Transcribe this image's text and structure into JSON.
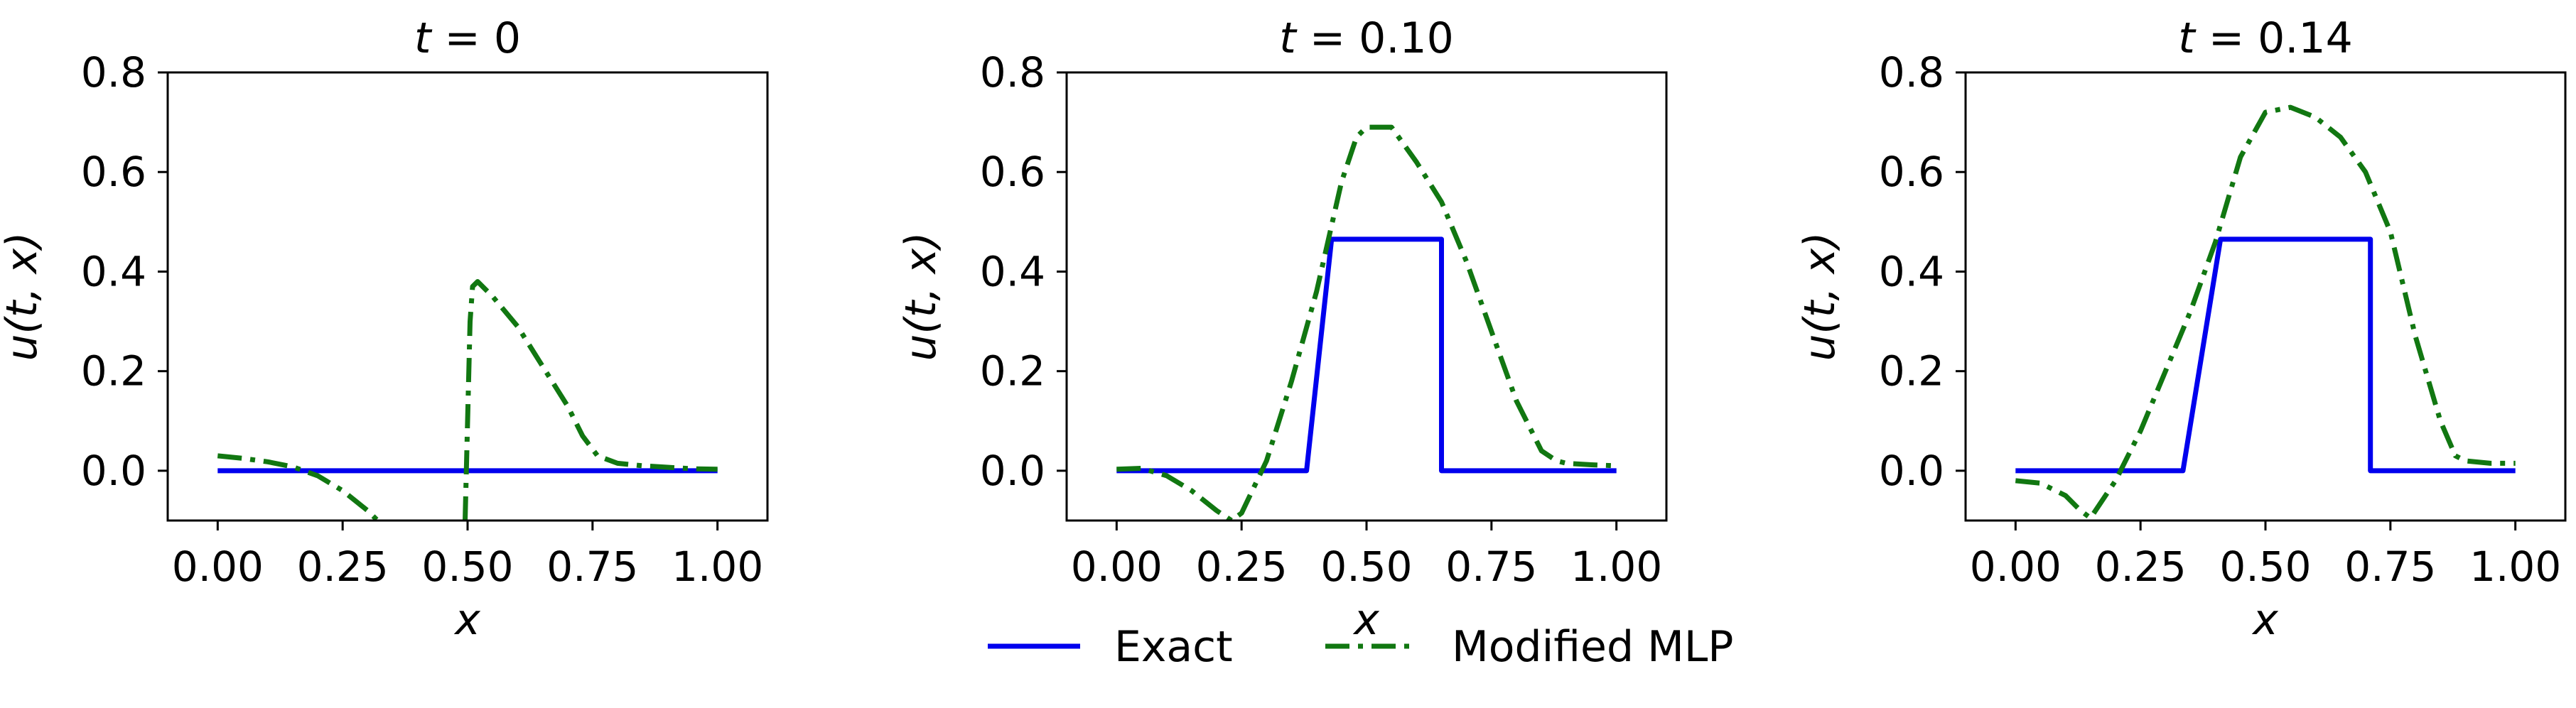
{
  "colors": {
    "exact": "#0000ee",
    "modified_mlp": "#117711",
    "axes": "#000000"
  },
  "legend": {
    "exact_label": "Exact",
    "modified_label": "Modified MLP",
    "placement": "bottom-center"
  },
  "chart_data": [
    {
      "type": "line",
      "title": "t = 0",
      "xlabel": "x",
      "ylabel": "u(t, x)",
      "xlim": [
        -0.1,
        1.1
      ],
      "ylim": [
        -0.1,
        0.8
      ],
      "xticks": [
        0.0,
        0.25,
        0.5,
        0.75,
        1.0
      ],
      "xtick_labels": [
        "0.00",
        "0.25",
        "0.50",
        "0.75",
        "1.00"
      ],
      "yticks": [
        0.0,
        0.2,
        0.4,
        0.6,
        0.8
      ],
      "ytick_labels": [
        "0.0",
        "0.2",
        "0.4",
        "0.6",
        "0.8"
      ],
      "series": [
        {
          "name": "Exact",
          "x": [
            0.0,
            1.0
          ],
          "y": [
            0.0,
            0.0
          ]
        },
        {
          "name": "Modified MLP",
          "x": [
            0.0,
            0.05,
            0.1,
            0.15,
            0.2,
            0.25,
            0.3,
            0.32,
            null,
            0.495,
            0.5,
            0.505,
            0.51,
            0.52,
            0.55,
            0.6,
            0.65,
            0.7,
            0.73,
            0.76,
            0.8,
            0.85,
            0.9,
            0.95,
            1.0
          ],
          "y": [
            0.03,
            0.025,
            0.018,
            0.008,
            -0.01,
            -0.04,
            -0.08,
            -0.1,
            null,
            -0.1,
            0.1,
            0.3,
            0.37,
            0.38,
            0.35,
            0.29,
            0.21,
            0.13,
            0.07,
            0.03,
            0.015,
            0.01,
            0.007,
            0.004,
            0.003
          ]
        }
      ]
    },
    {
      "type": "line",
      "title": "t = 0.10",
      "xlabel": "x",
      "ylabel": "u(t, x)",
      "xlim": [
        -0.1,
        1.1
      ],
      "ylim": [
        -0.1,
        0.8
      ],
      "xticks": [
        0.0,
        0.25,
        0.5,
        0.75,
        1.0
      ],
      "xtick_labels": [
        "0.00",
        "0.25",
        "0.50",
        "0.75",
        "1.00"
      ],
      "yticks": [
        0.0,
        0.2,
        0.4,
        0.6,
        0.8
      ],
      "ytick_labels": [
        "0.0",
        "0.2",
        "0.4",
        "0.6",
        "0.8"
      ],
      "series": [
        {
          "name": "Exact",
          "x": [
            0.0,
            0.38,
            0.43,
            0.65,
            0.65,
            1.0
          ],
          "y": [
            0.0,
            0.0,
            0.465,
            0.465,
            0.0,
            0.0
          ]
        },
        {
          "name": "Modified MLP",
          "x": [
            0.0,
            0.05,
            0.1,
            0.15,
            0.2,
            0.23,
            0.25,
            0.3,
            0.35,
            0.4,
            0.45,
            0.48,
            0.5,
            0.55,
            0.6,
            0.65,
            0.7,
            0.75,
            0.8,
            0.85,
            0.88,
            0.9,
            0.95,
            1.0
          ],
          "y": [
            0.003,
            0.005,
            -0.01,
            -0.04,
            -0.08,
            -0.1,
            -0.085,
            0.02,
            0.18,
            0.36,
            0.58,
            0.67,
            0.69,
            0.69,
            0.62,
            0.54,
            0.42,
            0.28,
            0.14,
            0.04,
            0.02,
            0.015,
            0.012,
            0.01
          ]
        }
      ]
    },
    {
      "type": "line",
      "title": "t = 0.14",
      "xlabel": "x",
      "ylabel": "u(t, x)",
      "xlim": [
        -0.1,
        1.1
      ],
      "ylim": [
        -0.1,
        0.8
      ],
      "xticks": [
        0.0,
        0.25,
        0.5,
        0.75,
        1.0
      ],
      "xtick_labels": [
        "0.00",
        "0.25",
        "0.50",
        "0.75",
        "1.00"
      ],
      "yticks": [
        0.0,
        0.2,
        0.4,
        0.6,
        0.8
      ],
      "ytick_labels": [
        "0.0",
        "0.2",
        "0.4",
        "0.6",
        "0.8"
      ],
      "series": [
        {
          "name": "Exact",
          "x": [
            0.0,
            0.335,
            0.41,
            0.71,
            0.71,
            1.0
          ],
          "y": [
            0.0,
            0.0,
            0.465,
            0.465,
            0.0,
            0.0
          ]
        },
        {
          "name": "Modified MLP",
          "x": [
            0.0,
            0.05,
            0.1,
            0.13,
            0.15,
            0.2,
            0.25,
            0.3,
            0.35,
            0.4,
            0.45,
            0.5,
            0.55,
            0.6,
            0.65,
            0.7,
            0.75,
            0.8,
            0.85,
            0.88,
            0.9,
            0.95,
            1.0
          ],
          "y": [
            -0.02,
            -0.025,
            -0.05,
            -0.08,
            -0.095,
            -0.02,
            0.08,
            0.2,
            0.32,
            0.46,
            0.63,
            0.72,
            0.73,
            0.71,
            0.67,
            0.6,
            0.48,
            0.27,
            0.1,
            0.03,
            0.02,
            0.015,
            0.015
          ]
        }
      ]
    }
  ]
}
